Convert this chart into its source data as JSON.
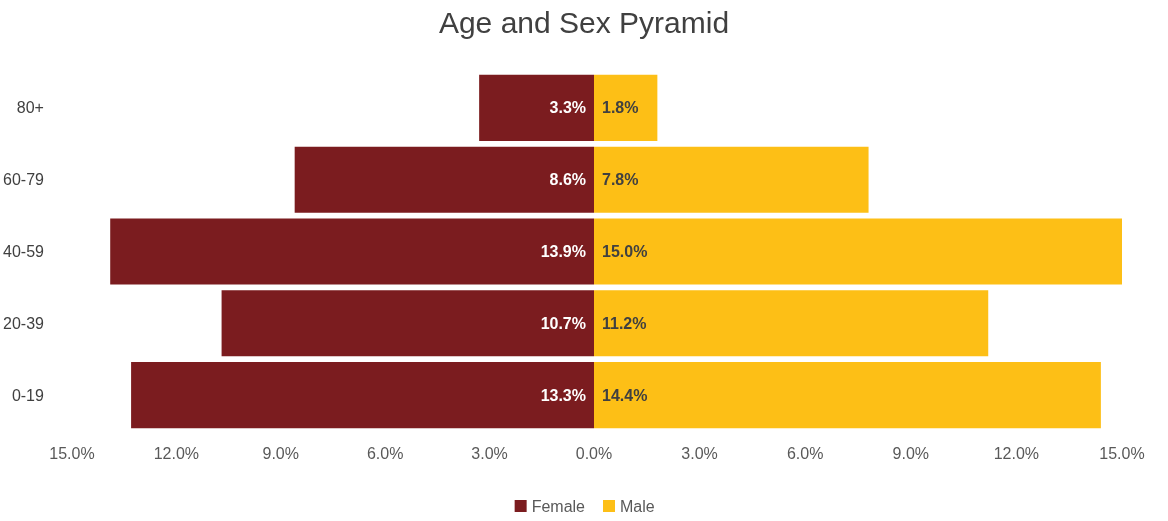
{
  "chart_data": [
    {
      "type": "bar",
      "title": "Age and Sex Pyramid",
      "orientation": "horizontal",
      "categories": [
        "80+",
        "60-79",
        "40-59",
        "20-39",
        "0-19"
      ],
      "series": [
        {
          "name": "Female",
          "color": "#7b1c1f",
          "values": [
            3.3,
            8.6,
            13.9,
            10.7,
            13.3
          ],
          "value_labels": [
            "3.3%",
            "8.6%",
            "13.9%",
            "10.7%",
            "13.3%"
          ]
        }
      ],
      "xlim": [
        15,
        0
      ],
      "xticks": [
        {
          "value": 15,
          "label": "15.0%"
        },
        {
          "value": 12,
          "label": "12.0%"
        },
        {
          "value": 9,
          "label": "9.0%"
        },
        {
          "value": 6,
          "label": "6.0%"
        },
        {
          "value": 3,
          "label": "3.0%"
        },
        {
          "value": 0,
          "label": "0.0%"
        }
      ],
      "grid": false,
      "legend": "bottom"
    },
    {
      "type": "bar",
      "orientation": "horizontal",
      "categories": [
        null,
        null,
        null,
        null,
        null
      ],
      "series": [
        {
          "name": "Male",
          "color": "#fdbf16",
          "values": [
            1.8,
            7.8,
            15.0,
            11.2,
            14.4
          ],
          "value_labels": [
            "1.8%",
            "7.8%",
            "15.0%",
            "11.2%",
            "14.4%"
          ]
        }
      ],
      "xlim": [
        0,
        15
      ],
      "xticks": [
        {
          "value": 3,
          "label": "3.0%"
        },
        {
          "value": 6,
          "label": "6.0%"
        },
        {
          "value": 9,
          "label": "9.0%"
        },
        {
          "value": 12,
          "label": "12.0%"
        },
        {
          "value": 15,
          "label": "15.0%"
        }
      ],
      "tick_labels": "x",
      "grid": false,
      "legend": "bottom"
    }
  ]
}
